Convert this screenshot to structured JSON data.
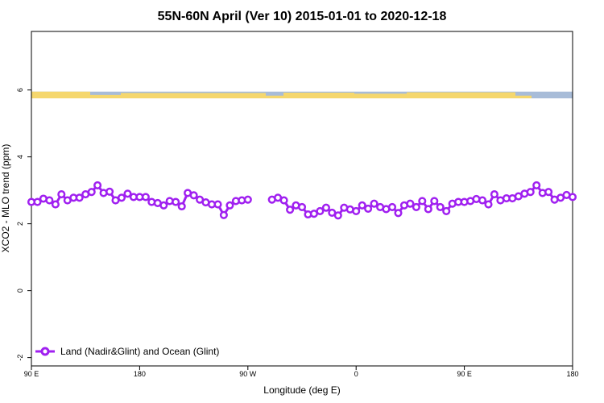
{
  "chart_data": {
    "type": "line",
    "title": "55N-60N April (Ver 10)   2015-01-01 to 2020-12-18",
    "xlabel": "Longitude (deg E)",
    "ylabel": "XCO2 - MLO trend (ppm)",
    "xlim": [
      -90,
      180
    ],
    "ylim": [
      -2.25,
      7.75
    ],
    "x_ticks": [
      {
        "value": -90,
        "label": "90 E"
      },
      {
        "value": -36,
        "label": "180"
      },
      {
        "value": 18,
        "label": "90 W"
      },
      {
        "value": 72,
        "label": "0"
      },
      {
        "value": 126,
        "label": "90 E"
      },
      {
        "value": 180,
        "label": "180"
      }
    ],
    "y_ticks": [
      {
        "value": -2,
        "label": "-2"
      },
      {
        "value": 0,
        "label": "0"
      },
      {
        "value": 2,
        "label": "2"
      },
      {
        "value": 4,
        "label": "4"
      },
      {
        "value": 6,
        "label": "6"
      }
    ],
    "grid": false,
    "legend_position": "bottom-left",
    "land_strip": {
      "y_range": [
        5.75,
        5.95
      ],
      "ocean_color": "#a8bcd8",
      "land_color": "#f5d76e"
    },
    "series": [
      {
        "name": "Land (Nadir&Glint) and Ocean (Glint)",
        "color": "#a020f0",
        "x": [
          -90,
          -87,
          -84,
          -81,
          -78,
          -75,
          -72,
          -69,
          -66,
          -63,
          -60,
          -57,
          -54,
          -51,
          -48,
          -45,
          -42,
          -39,
          -36,
          -33,
          -30,
          -27,
          -24,
          -21,
          -18,
          -15,
          -12,
          -9,
          -6,
          -3,
          0,
          3,
          6,
          9,
          12,
          15,
          18,
          30,
          33,
          36,
          39,
          42,
          45,
          48,
          51,
          54,
          57,
          60,
          63,
          66,
          69,
          72,
          75,
          78,
          81,
          84,
          87,
          90,
          93,
          96,
          99,
          102,
          105,
          108,
          111,
          114,
          117,
          120,
          123,
          126,
          129,
          132,
          135,
          138,
          141,
          144,
          147,
          150,
          153,
          156,
          159,
          162,
          165,
          168,
          171,
          174,
          177,
          180
        ],
        "y": [
          2.65,
          2.65,
          2.75,
          2.7,
          2.58,
          2.88,
          2.7,
          2.78,
          2.78,
          2.88,
          2.95,
          3.15,
          2.92,
          2.96,
          2.7,
          2.78,
          2.9,
          2.8,
          2.8,
          2.8,
          2.65,
          2.62,
          2.55,
          2.68,
          2.65,
          2.52,
          2.92,
          2.85,
          2.72,
          2.64,
          2.58,
          2.58,
          2.26,
          2.55,
          2.68,
          2.7,
          2.72,
          2.72,
          2.78,
          2.7,
          2.42,
          2.55,
          2.5,
          2.28,
          2.3,
          2.38,
          2.48,
          2.33,
          2.25,
          2.48,
          2.43,
          2.38,
          2.55,
          2.45,
          2.6,
          2.5,
          2.44,
          2.5,
          2.32,
          2.55,
          2.6,
          2.5,
          2.68,
          2.44,
          2.68,
          2.5,
          2.38,
          2.6,
          2.65,
          2.65,
          2.68,
          2.74,
          2.7,
          2.58,
          2.88,
          2.7,
          2.76,
          2.76,
          2.82,
          2.9,
          2.95,
          3.15,
          2.92,
          2.95,
          2.72,
          2.78,
          2.86,
          2.8
        ]
      }
    ]
  }
}
